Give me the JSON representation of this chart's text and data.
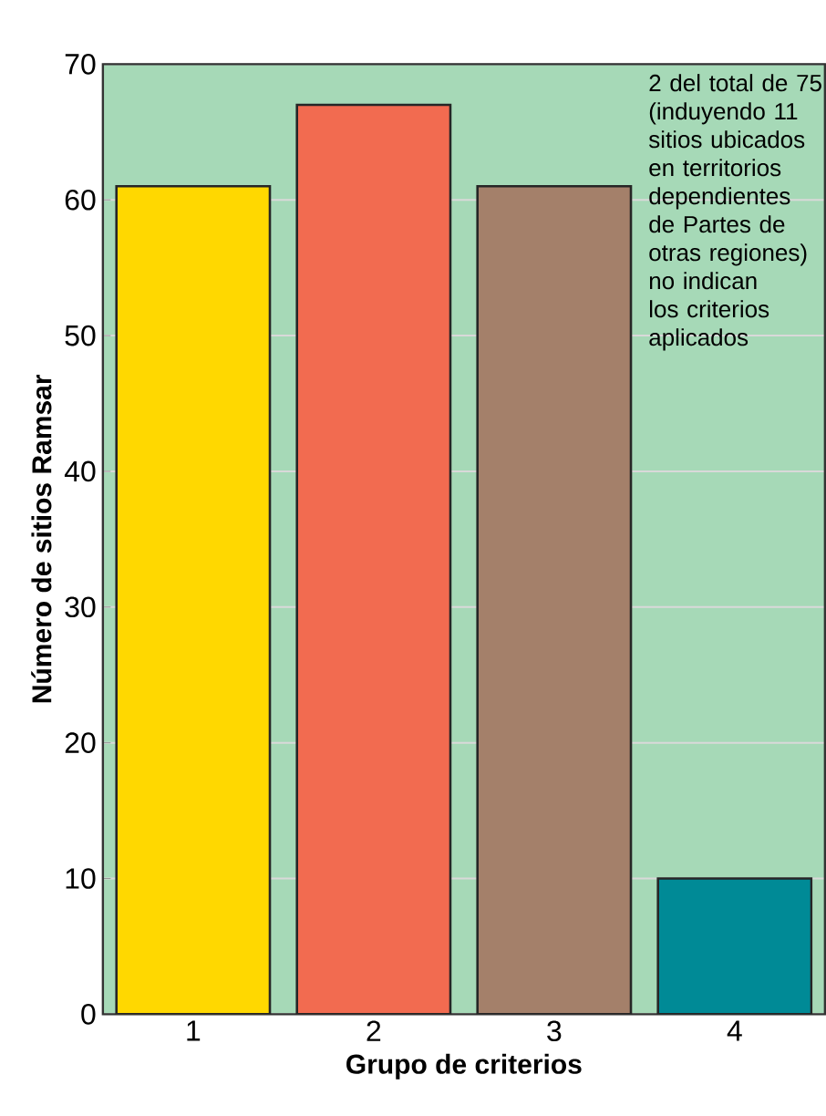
{
  "chart_data": {
    "type": "bar",
    "xlabel": "Grupo de criterios",
    "ylabel": "Número de sitios Ramsar",
    "categories": [
      "1",
      "2",
      "3",
      "4"
    ],
    "values": [
      61,
      67,
      61,
      10
    ],
    "colors": [
      "#ffd800",
      "#f26b50",
      "#a4806a",
      "#008a96"
    ],
    "ylim": [
      0,
      70
    ],
    "yticks": [
      0,
      10,
      20,
      30,
      40,
      50,
      60,
      70
    ],
    "grid": "y",
    "annotations": [
      "2 del total de 75 (induyendo 11 sitios ubicados en territorios dependientes de Partes de otras regiones) no indican los criterios aplicados"
    ]
  }
}
